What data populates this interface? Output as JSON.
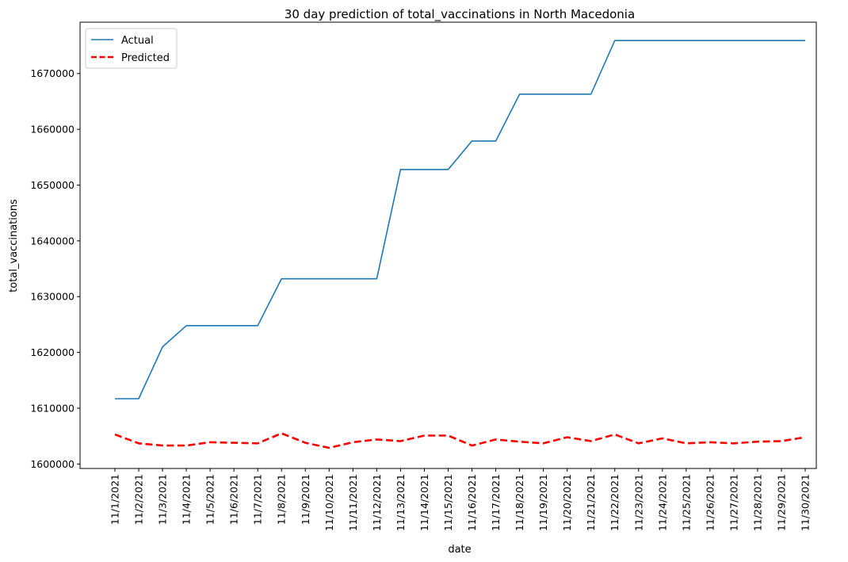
{
  "chart_data": {
    "type": "line",
    "title": "30 day prediction of total_vaccinations in North Macedonia",
    "xlabel": "date",
    "ylabel": "total_vaccinations",
    "categories": [
      "11/1/2021",
      "11/2/2021",
      "11/3/2021",
      "11/4/2021",
      "11/5/2021",
      "11/6/2021",
      "11/7/2021",
      "11/8/2021",
      "11/9/2021",
      "11/10/2021",
      "11/11/2021",
      "11/12/2021",
      "11/13/2021",
      "11/14/2021",
      "11/15/2021",
      "11/16/2021",
      "11/17/2021",
      "11/18/2021",
      "11/19/2021",
      "11/20/2021",
      "11/21/2021",
      "11/22/2021",
      "11/23/2021",
      "11/24/2021",
      "11/25/2021",
      "11/26/2021",
      "11/27/2021",
      "11/28/2021",
      "11/29/2021",
      "11/30/2021"
    ],
    "yticks": [
      1600000,
      1610000,
      1620000,
      1630000,
      1640000,
      1650000,
      1660000,
      1670000
    ],
    "ylim": [
      1599200,
      1679200
    ],
    "grid": false,
    "legend_position": "top-left",
    "series": [
      {
        "name": "Actual",
        "color": "#1f77b4",
        "dash": "solid",
        "values": [
          1611700,
          1611700,
          1621000,
          1624800,
          1624800,
          1624800,
          1624800,
          1633200,
          1633200,
          1633200,
          1633200,
          1633200,
          1652800,
          1652800,
          1652800,
          1657900,
          1657900,
          1666300,
          1666300,
          1666300,
          1666300,
          1675900,
          1675900,
          1675900,
          1675900,
          1675900,
          1675900,
          1675900,
          1675900,
          1675900
        ]
      },
      {
        "name": "Predicted",
        "color": "#ff0000",
        "dash": "dashed",
        "values": [
          1605300,
          1603700,
          1603300,
          1603300,
          1603900,
          1603800,
          1603700,
          1605500,
          1603800,
          1602900,
          1603900,
          1604400,
          1604100,
          1605100,
          1605100,
          1603300,
          1604400,
          1604000,
          1603700,
          1604800,
          1604100,
          1605300,
          1603700,
          1604600,
          1603700,
          1603900,
          1603700,
          1604000,
          1604100,
          1604800
        ]
      }
    ]
  }
}
